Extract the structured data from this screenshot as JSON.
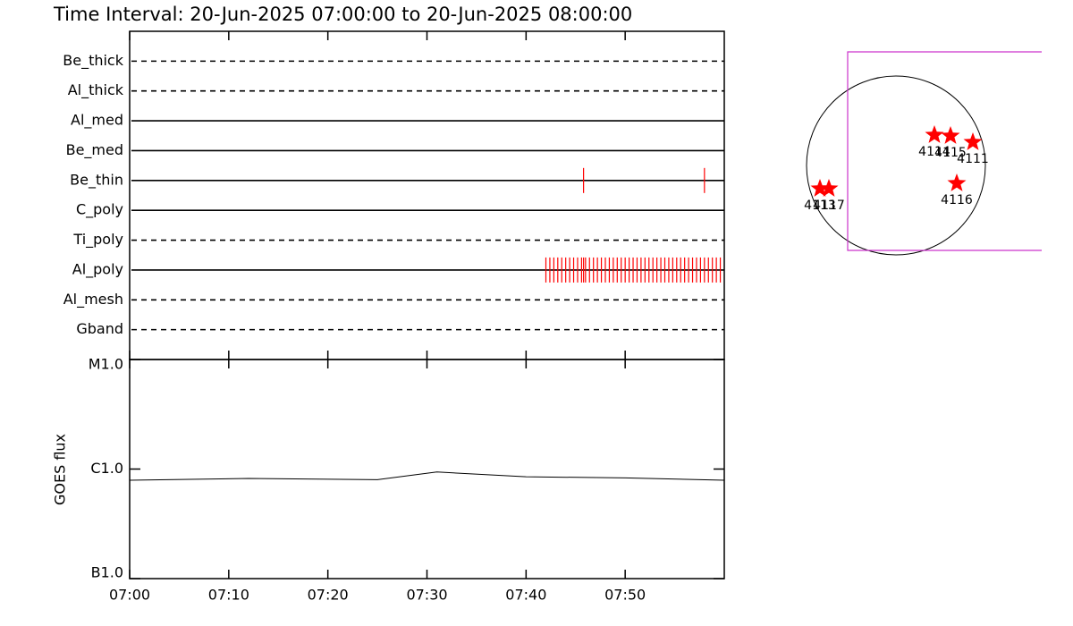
{
  "chart_data": [
    {
      "type": "event",
      "title": "Time Interval: 20-Jun-2025 07:00:00 to 20-Jun-2025 08:00:00",
      "categories": [
        "Be_thick",
        "Al_thick",
        "Al_med",
        "Be_med",
        "Be_thin",
        "C_poly",
        "Ti_poly",
        "Al_poly",
        "Al_mesh",
        "Gband"
      ],
      "line_styles": [
        "dashed",
        "dashed",
        "solid",
        "solid",
        "solid",
        "solid",
        "dashed",
        "solid",
        "dashed",
        "dashed"
      ],
      "observations": [
        [],
        [],
        [],
        [],
        [
          45.8,
          58
        ],
        [],
        [],
        [
          42,
          42.4,
          42.8,
          43.2,
          43.6,
          44,
          44.4,
          44.8,
          45.2,
          45.6,
          45.8,
          46,
          46.4,
          46.8,
          47.2,
          47.6,
          48,
          48.4,
          48.8,
          49.2,
          49.6,
          50,
          50.4,
          50.8,
          51.2,
          51.6,
          52,
          52.4,
          52.8,
          53.2,
          53.6,
          54,
          54.4,
          54.8,
          55.2,
          55.6,
          56,
          56.4,
          56.8,
          57.2,
          57.6,
          58,
          58.4,
          58.8,
          59.2,
          59.6
        ],
        [],
        []
      ],
      "color": "#ff0000",
      "xlim": [
        0,
        60
      ]
    },
    {
      "type": "line",
      "ylabel": "GOES flux",
      "x": [
        0,
        12,
        25,
        31,
        40,
        50,
        60
      ],
      "values": [
        7.9e-07,
        8.2e-07,
        8e-07,
        9.4e-07,
        8.5e-07,
        8.3e-07,
        7.9e-07
      ],
      "color": "#000000",
      "log_scale": true,
      "ylim": [
        1e-07,
        1e-05
      ],
      "yticks": [
        {
          "value": 1e-07,
          "label": "B1.0"
        },
        {
          "value": 1e-06,
          "label": "C1.0"
        },
        {
          "value": 1e-05,
          "label": "M1.0"
        }
      ],
      "xlim": [
        0,
        60
      ],
      "xticks": [
        {
          "value": 0,
          "label": "07:00"
        },
        {
          "value": 10,
          "label": "07:10"
        },
        {
          "value": 20,
          "label": "07:20"
        },
        {
          "value": 30,
          "label": "07:30"
        },
        {
          "value": 40,
          "label": "07:40"
        },
        {
          "value": 50,
          "label": "07:50"
        }
      ]
    }
  ],
  "map": {
    "regions": [
      "4114",
      "4115",
      "4111",
      "4116",
      "4113",
      "4117"
    ]
  }
}
